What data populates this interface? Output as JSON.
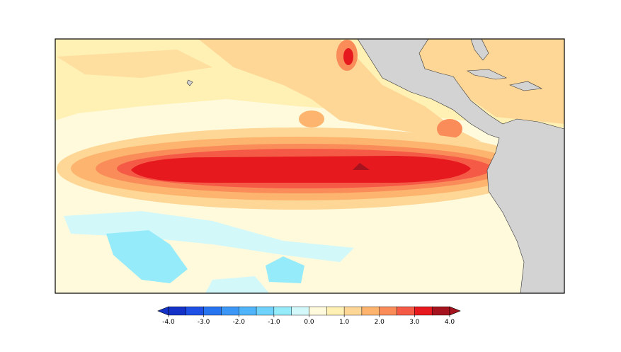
{
  "colorbar": {
    "bins": [
      -4.0,
      -3.5,
      -3.0,
      -2.5,
      -2.0,
      -1.5,
      -1.0,
      -0.5,
      0.0,
      0.5,
      1.0,
      1.5,
      2.0,
      2.5,
      3.0,
      3.5,
      4.0
    ],
    "colors": [
      "#1432c8",
      "#1e50e6",
      "#2873f0",
      "#3c96f5",
      "#50b4fa",
      "#6ed2fa",
      "#96ebfa",
      "#d2f8fa",
      "#fffadc",
      "#fff0b4",
      "#fed796",
      "#fcb46e",
      "#fa8c5a",
      "#f55a46",
      "#e6191e",
      "#a5141e"
    ],
    "ticks": [
      {
        "value": -4.0,
        "label": "-4.0"
      },
      {
        "value": -3.0,
        "label": "-3.0"
      },
      {
        "value": -2.0,
        "label": "-2.0"
      },
      {
        "value": -1.0,
        "label": "-1.0"
      },
      {
        "value": 0.0,
        "label": "0.0"
      },
      {
        "value": 1.0,
        "label": "1.0"
      },
      {
        "value": 2.0,
        "label": "2.0"
      },
      {
        "value": 3.0,
        "label": "3.0"
      },
      {
        "value": 4.0,
        "label": "4.0"
      }
    ]
  }
}
